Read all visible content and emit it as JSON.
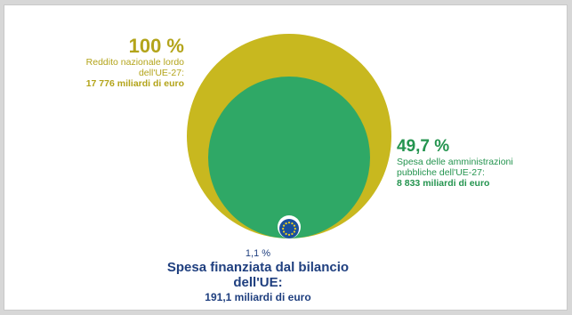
{
  "colors": {
    "gni": "#c8b81f",
    "gni_text": "#b3a41a",
    "gov": "#2fa866",
    "gov_text": "#24944f",
    "eu": "#1a4f9c",
    "eu_text": "#1f3f7f",
    "star": "#f3d21a"
  },
  "gni": {
    "percent": "100 %",
    "label_line1": "Reddito nazionale lordo",
    "label_line2": "dell'UE-27:",
    "amount": "17 776 miliardi di euro",
    "share": 1.0
  },
  "gov": {
    "percent": "49,7 %",
    "label_line1": "Spesa delle amministrazioni",
    "label_line2": "pubbliche dell'UE-27:",
    "amount": "8 833 miliardi di euro",
    "share": 0.497
  },
  "eu": {
    "percent": "1,1 %",
    "label_line1": "Spesa finanziata dal bilancio",
    "label_line2": "dell'UE:",
    "amount": "191,1 miliardi di euro",
    "share": 0.011,
    "icon": "eu-flag-icon"
  }
}
